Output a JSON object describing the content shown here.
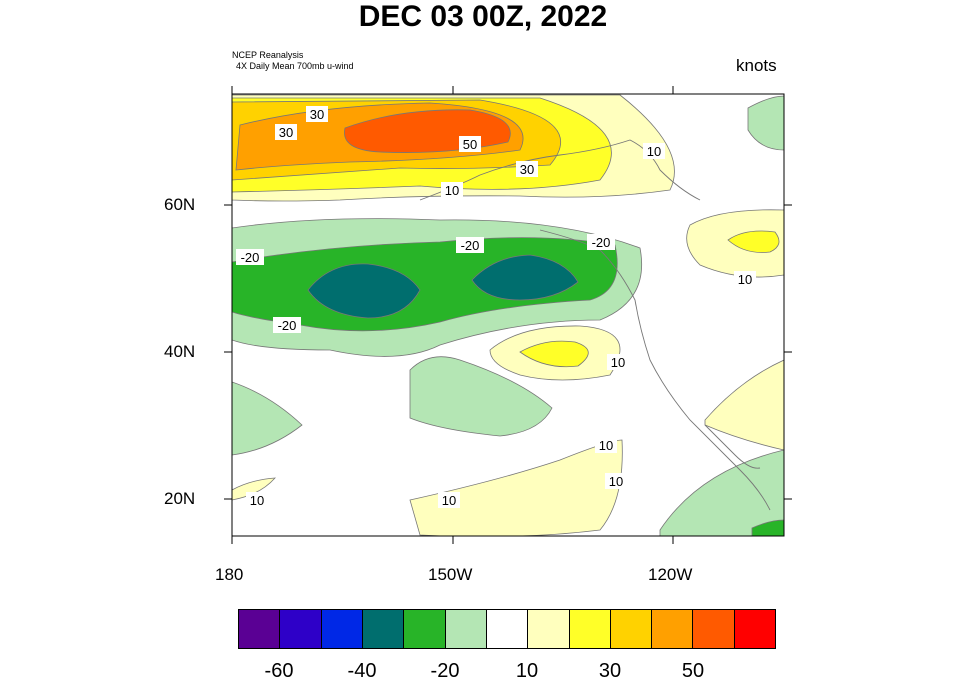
{
  "title": "DEC 03 00Z, 2022",
  "source_line1": "NCEP Reanalysis",
  "source_line2": "4X Daily Mean 700mb u-wind",
  "units": "knots",
  "lat_labels": [
    "60N",
    "40N",
    "20N"
  ],
  "lon_labels": [
    "180",
    "150W",
    "120W"
  ],
  "colorbar": {
    "colors": [
      "#5a0094",
      "#2e00c8",
      "#0028e6",
      "#006e6e",
      "#28b428",
      "#b4e6b4",
      "#ffffff",
      "#ffffbe",
      "#ffff28",
      "#ffd200",
      "#ffa000",
      "#ff5a00",
      "#ff0000"
    ],
    "labels": [
      "-60",
      "-40",
      "-20",
      "10",
      "30",
      "50"
    ]
  },
  "contour_labels": {
    "n30a": "30",
    "n30b": "30",
    "n50": "50",
    "n30c": "30",
    "n10a": "10",
    "n10b": "10",
    "n10c": "10",
    "m20a": "-20",
    "m20b": "-20",
    "m20c": "-20",
    "m20d": "-20",
    "n10d": "10",
    "n10e": "10",
    "n10f": "10",
    "n10g": "10",
    "n10h": "10"
  }
}
